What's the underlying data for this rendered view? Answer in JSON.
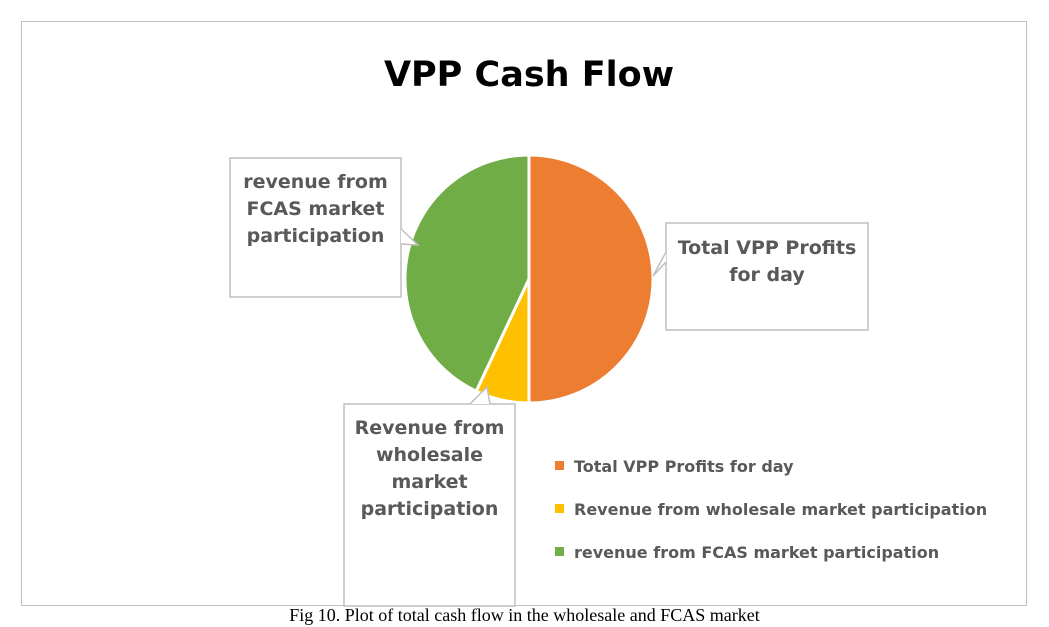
{
  "chart_data": {
    "type": "pie",
    "title": "VPP Cash Flow",
    "categories": [
      "Total VPP Profits for day",
      "Revenue from wholesale market participation",
      "revenue from FCAS market participation"
    ],
    "values": [
      50,
      7,
      43
    ],
    "colors": [
      "#ed7d31",
      "#ffc000",
      "#70ad47"
    ],
    "data_labels": [
      [
        "Total VPP Profits",
        "for day"
      ],
      [
        "Revenue from",
        "wholesale",
        "market",
        "participation"
      ],
      [
        "revenue from",
        "FCAS market",
        "participation"
      ]
    ],
    "legend": {
      "position": "bottom-right",
      "entries": [
        "Total VPP Profits for day",
        "Revenue from wholesale market participation",
        "revenue from FCAS market participation"
      ]
    }
  },
  "caption": "Fig 10. Plot of total cash flow in the wholesale and FCAS market"
}
